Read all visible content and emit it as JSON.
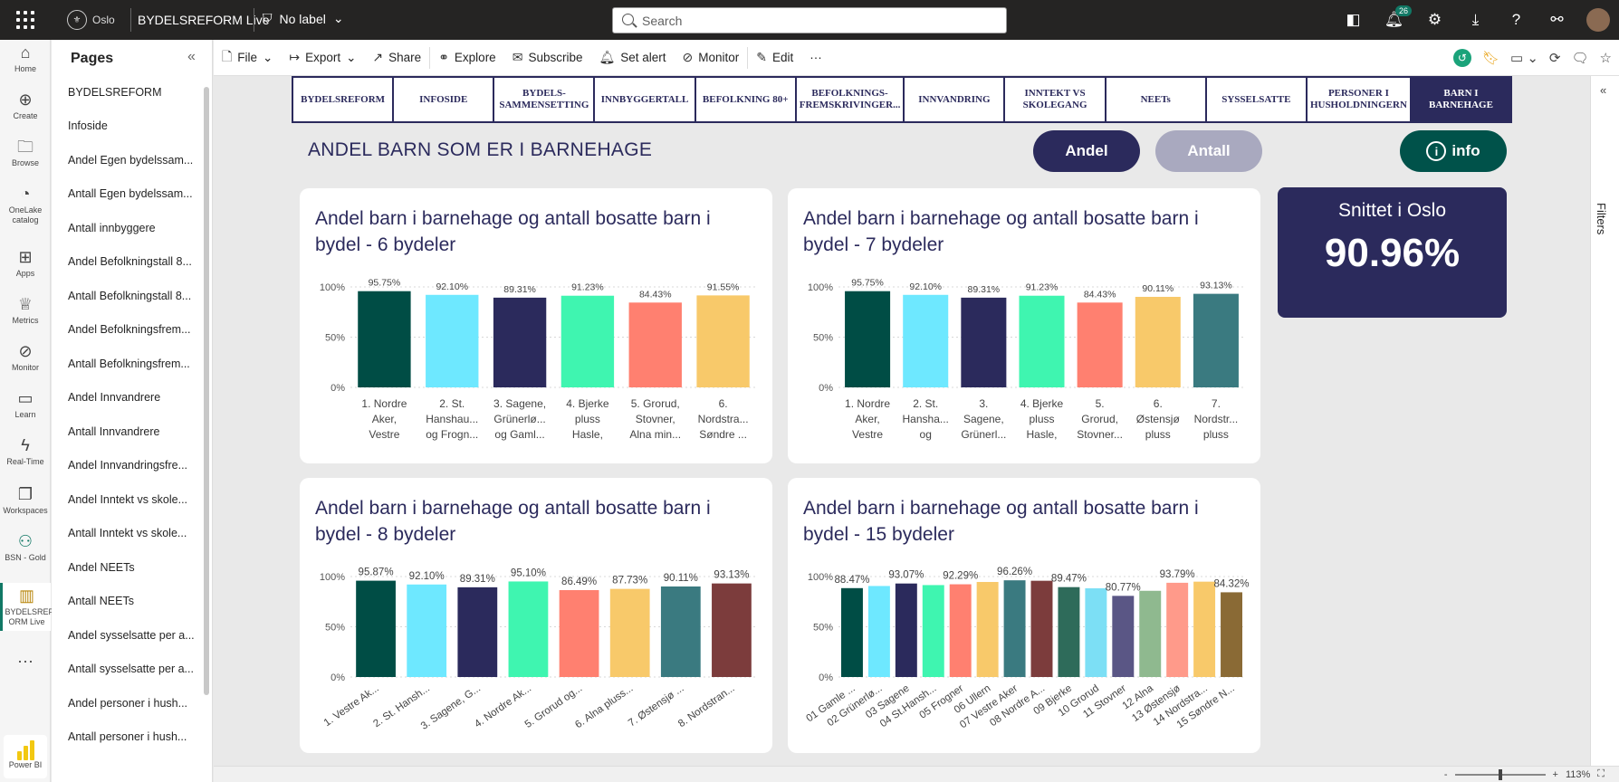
{
  "topbar": {
    "org": "Oslo",
    "report_title": "BYDELSREFORM Live",
    "sensitivity": "No label",
    "search_placeholder": "Search",
    "notifications_count": "26"
  },
  "leftnav": [
    {
      "label": "Home",
      "icon": "home-icon"
    },
    {
      "label": "Create",
      "icon": "plus-circle-icon"
    },
    {
      "label": "Browse",
      "icon": "folder-icon"
    },
    {
      "label": "OneLake catalog",
      "icon": "onelake-icon"
    },
    {
      "label": "Apps",
      "icon": "apps-icon"
    },
    {
      "label": "Metrics",
      "icon": "trophy-icon"
    },
    {
      "label": "Monitor",
      "icon": "monitor-icon"
    },
    {
      "label": "Learn",
      "icon": "book-icon"
    },
    {
      "label": "Real-Time",
      "icon": "lightning-icon"
    },
    {
      "label": "Workspaces",
      "icon": "workspaces-icon"
    },
    {
      "label": "BSN - Gold",
      "icon": "people-icon"
    },
    {
      "label": "BYDELSREF ORM Live",
      "icon": "report-icon"
    },
    {
      "label": "...",
      "icon": "more-icon"
    }
  ],
  "powerbi_label": "Power BI",
  "pages": {
    "title": "Pages",
    "items": [
      "BYDELSREFORM",
      "Infoside",
      "Andel Egen bydelssam...",
      "Antall Egen bydelssam...",
      "Antall innbyggere",
      "Andel Befolkningstall 8...",
      "Antall Befolkningstall 8...",
      "Andel Befolkningsfrem...",
      "Antall Befolkningsfrem...",
      "Andel Innvandrere",
      "Antall Innvandrere",
      "Andel Innvandringsfre...",
      "Andel Inntekt vs skole...",
      "Antall Inntekt vs skole...",
      "Andel NEETs",
      "Antall NEETs",
      "Andel sysselsatte per a...",
      "Antall sysselsatte per a...",
      "Andel personer i hush...",
      "Antall personer i hush..."
    ]
  },
  "actionbar": {
    "file": "File",
    "export": "Export",
    "share": "Share",
    "explore": "Explore",
    "subscribe": "Subscribe",
    "set_alert": "Set alert",
    "monitor": "Monitor",
    "edit": "Edit"
  },
  "filters_label": "Filters",
  "zoom_level": "113%",
  "report": {
    "nav_tabs": [
      "BYDELSREFORM",
      "INFOSIDE",
      "BYDELS-SAMMENSETTING",
      "INNBYGGERTALL",
      "BEFOLKNING 80+",
      "BEFOLKNINGS-FREMSKRIVINGER...",
      "INNVANDRING",
      "INNTEKT VS SKOLEGANG",
      "NEETs",
      "SYSSELSATTE",
      "PERSONER I HUSHOLDNINGERN",
      "BARN I BARNEHAGE"
    ],
    "active_tab": "BARN I BARNEHAGE",
    "title": "ANDEL BARN SOM ER I BARNEHAGE",
    "btn_andel": "Andel",
    "btn_antall": "Antall",
    "btn_info": "info",
    "avg_label": "Snittet i Oslo",
    "avg_value": "90.96%"
  },
  "chart_data": [
    {
      "type": "bar",
      "title": "Andel barn i barnehage og antall bosatte barn i bydel - 6 bydeler",
      "categories": [
        "1. Nordre Aker, Vestre Ak...",
        "2. St. Hanshau... og Frogn...",
        "3. Sagene, Grünerlø... og Gaml...",
        "4. Bjerke pluss Hasle, Lø...",
        "5. Grorud, Stovner, Alna min...",
        "6. Nordstra... Søndre ..."
      ],
      "values": [
        95.75,
        92.1,
        89.31,
        91.23,
        84.43,
        91.55
      ],
      "labels": [
        "95.75%",
        "92.10%",
        "89.31%",
        "91.23%",
        "84.43%",
        "91.55%"
      ],
      "colors": [
        "#004d45",
        "#6ee8ff",
        "#2b2a5c",
        "#3ff5b0",
        "#ff8070",
        "#f8c96a"
      ],
      "ylim": [
        0,
        100
      ],
      "yticks": [
        "0%",
        "50%",
        "100%"
      ],
      "label_style": "wrap"
    },
    {
      "type": "bar",
      "title": "Andel barn i barnehage og antall bosatte barn i bydel - 7 bydeler",
      "categories": [
        "1. Nordre Aker, Vestre ...",
        "2. St. Hansha... og Frog...",
        "3. Sagene, Grünerl...",
        "4. Bjerke pluss Hasle, L...",
        "5. Grorud, Stovner...",
        "6. Østensjø pluss Bj...",
        "7. Nordstr... pluss H..."
      ],
      "values": [
        95.75,
        92.1,
        89.31,
        91.23,
        84.43,
        90.11,
        93.13
      ],
      "labels": [
        "95.75%",
        "92.10%",
        "89.31%",
        "91.23%",
        "84.43%",
        "90.11%",
        "93.13%"
      ],
      "colors": [
        "#004d45",
        "#6ee8ff",
        "#2b2a5c",
        "#3ff5b0",
        "#ff8070",
        "#f8c96a",
        "#3a7a80"
      ],
      "ylim": [
        0,
        100
      ],
      "yticks": [
        "0%",
        "50%",
        "100%"
      ],
      "label_style": "wrap"
    },
    {
      "type": "bar",
      "title": "Andel barn i barnehage og antall bosatte barn i bydel - 8 bydeler",
      "categories": [
        "1. Vestre Ak...",
        "2. St. Hansh...",
        "3. Sagene, G...",
        "4. Nordre Ak...",
        "5. Grorud og...",
        "6. Alna pluss...",
        "7. Østensjø ...",
        "8. Nordstran..."
      ],
      "values": [
        95.87,
        92.1,
        89.31,
        95.1,
        86.49,
        87.73,
        90.11,
        93.13
      ],
      "labels": [
        "95.87%",
        "92.10%",
        "89.31%",
        "95.10%",
        "86.49%",
        "87.73%",
        "90.11%",
        "93.13%"
      ],
      "colors": [
        "#004d45",
        "#6ee8ff",
        "#2b2a5c",
        "#3ff5b0",
        "#ff8070",
        "#f8c96a",
        "#3a7a80",
        "#7c3c3c"
      ],
      "ylim": [
        0,
        100
      ],
      "yticks": [
        "0%",
        "50%",
        "100%"
      ],
      "label_style": "rotate"
    },
    {
      "type": "bar",
      "title": "Andel barn i barnehage og antall bosatte barn i bydel - 15 bydeler",
      "categories": [
        "01 Gamle ...",
        "02 Grünerlø...",
        "03 Sagene",
        "04 St.Hansh...",
        "05 Frogner",
        "06 Ullern",
        "07 Vestre Aker",
        "08 Nordre A...",
        "09 Bjerke",
        "10 Grorud",
        "11 Stovner",
        "12 Alna",
        "13 Østensjø",
        "14 Nordstra...",
        "15 Søndre N..."
      ],
      "values": [
        88.47,
        90.6,
        93.07,
        91.5,
        92.29,
        94.6,
        96.26,
        95.8,
        89.47,
        88.3,
        80.77,
        85.8,
        93.79,
        94.9,
        84.32
      ],
      "labels": [
        "88.47%",
        "",
        "93.07%",
        "",
        "92.29%",
        "",
        "96.26%",
        "",
        "89.47%",
        "",
        "80.77%",
        "",
        "93.79%",
        "",
        "84.32%"
      ],
      "colors": [
        "#004d45",
        "#6ee8ff",
        "#2b2a5c",
        "#3ff5b0",
        "#ff8070",
        "#f8c96a",
        "#3a7a80",
        "#7c3c3c",
        "#2e6b5a",
        "#7cdff5",
        "#5a5685",
        "#8fb98f",
        "#ff9a8a",
        "#f8c96a",
        "#8a6a35"
      ],
      "ylim": [
        0,
        100
      ],
      "yticks": [
        "0%",
        "50%",
        "100%"
      ],
      "label_style": "rotate"
    }
  ]
}
